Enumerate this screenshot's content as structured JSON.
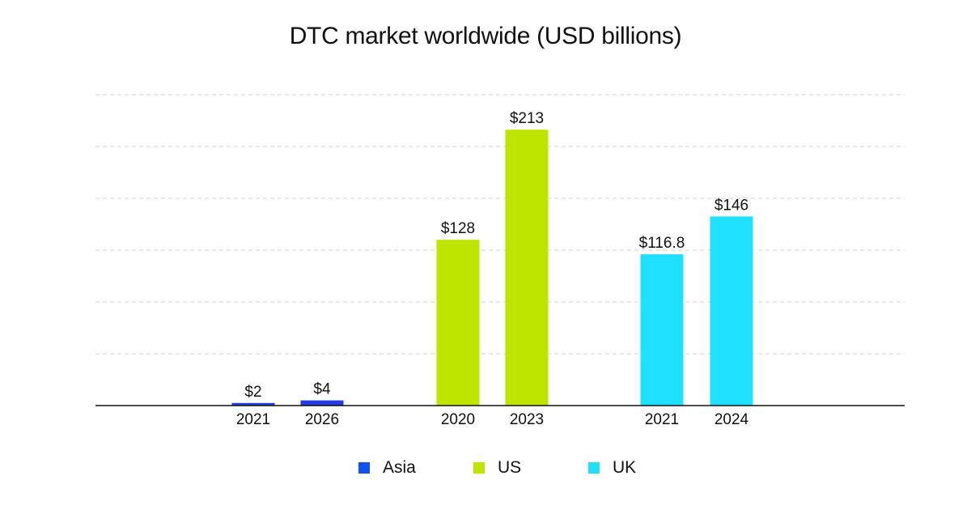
{
  "chart_data": {
    "type": "bar",
    "title": "DTC market worldwide (USD billions)",
    "xlabel": "",
    "ylabel": "",
    "ylim": [
      0,
      240
    ],
    "grid": true,
    "legend_position": "bottom-center",
    "groups": [
      {
        "name": "Asia",
        "color": "#233ce6",
        "legend_color": "#1452f0",
        "bars": [
          {
            "x": "2021",
            "value": 2,
            "label": "$2"
          },
          {
            "x": "2026",
            "value": 4,
            "label": "$4"
          }
        ]
      },
      {
        "name": "US",
        "color": "#bde500",
        "legend_color": "#bde500",
        "bars": [
          {
            "x": "2020",
            "value": 128,
            "label": "$128"
          },
          {
            "x": "2023",
            "value": 213,
            "label": "$213"
          }
        ]
      },
      {
        "name": "UK",
        "color": "#1fe0ff",
        "legend_color": "#1fe0ff",
        "bars": [
          {
            "x": "2021",
            "value": 116.8,
            "label": "$116.8"
          },
          {
            "x": "2024",
            "value": 146,
            "label": "$146"
          }
        ]
      }
    ],
    "legend": [
      "Asia",
      "US",
      "UK"
    ]
  }
}
